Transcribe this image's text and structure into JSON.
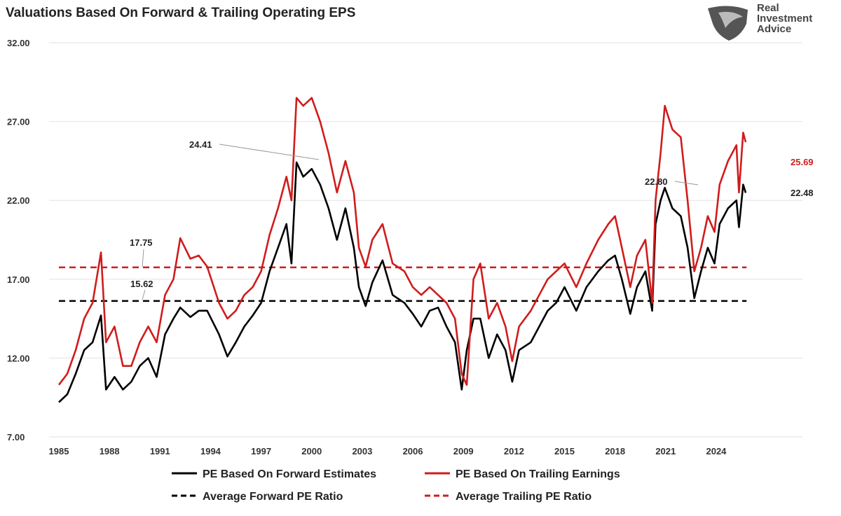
{
  "chart_data": {
    "type": "line",
    "title": "Valuations  Based On Forward & Trailing Operating EPS",
    "xlabel": "",
    "ylabel": "",
    "ylim": [
      7,
      32
    ],
    "xlim": [
      1985,
      2026
    ],
    "grid": true,
    "y_ticks": [
      "7.00",
      "12.00",
      "17.00",
      "22.00",
      "27.00",
      "32.00"
    ],
    "x_ticks": [
      "1985",
      "1988",
      "1991",
      "1994",
      "1997",
      "2000",
      "2003",
      "2006",
      "2009",
      "2012",
      "2015",
      "2018",
      "2021",
      "2024"
    ],
    "legend_position": "bottom",
    "x": [
      1985.0,
      1985.5,
      1986.0,
      1986.5,
      1987.0,
      1987.5,
      1987.8,
      1988.3,
      1988.8,
      1989.3,
      1989.8,
      1990.3,
      1990.8,
      1991.3,
      1991.8,
      1992.2,
      1992.8,
      1993.3,
      1993.8,
      1994.5,
      1995.0,
      1995.5,
      1996.0,
      1996.5,
      1997.0,
      1997.5,
      1998.0,
      1998.5,
      1998.8,
      1999.1,
      1999.5,
      2000.0,
      2000.5,
      2001.0,
      2001.5,
      2002.0,
      2002.5,
      2002.8,
      2003.2,
      2003.6,
      2004.2,
      2004.8,
      2005.5,
      2006.0,
      2006.5,
      2007.0,
      2007.5,
      2008.0,
      2008.5,
      2008.9,
      2009.2,
      2009.6,
      2010.0,
      2010.5,
      2011.0,
      2011.5,
      2011.9,
      2012.3,
      2013.0,
      2013.5,
      2014.0,
      2014.5,
      2015.0,
      2015.7,
      2016.3,
      2017.0,
      2017.6,
      2018.0,
      2018.4,
      2018.9,
      2019.3,
      2019.8,
      2020.2,
      2020.4,
      2020.7,
      2020.95,
      2021.4,
      2021.9,
      2022.3,
      2022.7,
      2023.1,
      2023.5,
      2023.9,
      2024.2,
      2024.7,
      2025.2,
      2025.35,
      2025.6,
      2025.75
    ],
    "series": [
      {
        "name": "PE Based On Forward Estimates",
        "color": "#000000",
        "style": "solid",
        "values": [
          9.2,
          9.7,
          11.0,
          12.5,
          13.0,
          14.7,
          10.0,
          10.8,
          10.0,
          10.5,
          11.5,
          12.0,
          10.8,
          13.5,
          14.5,
          15.2,
          14.6,
          15.0,
          15.0,
          13.5,
          12.1,
          13.0,
          14.0,
          14.7,
          15.5,
          17.5,
          19.0,
          20.5,
          18.0,
          24.41,
          23.5,
          24.0,
          23.0,
          21.5,
          19.5,
          21.5,
          19.0,
          16.5,
          15.3,
          16.8,
          18.2,
          16.0,
          15.5,
          14.8,
          14.0,
          15.0,
          15.2,
          14.0,
          13.0,
          10.0,
          12.5,
          14.5,
          14.5,
          12.0,
          13.5,
          12.5,
          10.5,
          12.5,
          13.0,
          14.0,
          15.0,
          15.5,
          16.5,
          15.0,
          16.5,
          17.5,
          18.2,
          18.5,
          17.0,
          14.8,
          16.5,
          17.5,
          15.0,
          20.5,
          22.0,
          22.8,
          21.5,
          21.0,
          19.0,
          15.8,
          17.5,
          19.0,
          18.0,
          20.5,
          21.5,
          22.0,
          20.3,
          23.0,
          22.48
        ]
      },
      {
        "name": "PE Based On Trailing Earnings",
        "color": "#d01c1c",
        "style": "solid",
        "values": [
          10.3,
          11.0,
          12.5,
          14.5,
          15.5,
          18.7,
          13.0,
          14.0,
          11.5,
          11.5,
          13.0,
          14.0,
          13.0,
          16.0,
          17.0,
          19.6,
          18.3,
          18.5,
          17.8,
          15.5,
          14.5,
          15.0,
          16.0,
          16.5,
          17.5,
          19.8,
          21.5,
          23.5,
          22.0,
          28.5,
          28.0,
          28.5,
          27.0,
          25.0,
          22.5,
          24.5,
          22.5,
          19.0,
          17.8,
          19.5,
          20.5,
          18.0,
          17.5,
          16.5,
          16.0,
          16.5,
          16.0,
          15.5,
          14.5,
          11.0,
          10.3,
          17.0,
          18.0,
          14.5,
          15.5,
          14.0,
          11.8,
          14.0,
          15.0,
          16.0,
          17.0,
          17.5,
          18.0,
          16.5,
          18.0,
          19.5,
          20.5,
          21.0,
          19.0,
          16.5,
          18.5,
          19.5,
          15.5,
          22.0,
          25.0,
          28.0,
          26.5,
          26.0,
          22.0,
          17.5,
          19.0,
          21.0,
          20.0,
          23.0,
          24.5,
          25.5,
          22.5,
          26.3,
          25.69
        ]
      },
      {
        "name": "Average Forward PE Ratio",
        "color": "#000000",
        "style": "dashed",
        "value": 15.62
      },
      {
        "name": "Average Trailing PE Ratio",
        "color": "#d01c1c",
        "style": "dashed",
        "value": 17.75
      }
    ],
    "annotations": [
      {
        "text": "24.41",
        "series": "forward",
        "x": 1999.1
      },
      {
        "text": "17.75",
        "series": "avg-trailing"
      },
      {
        "text": "15.62",
        "series": "avg-forward"
      },
      {
        "text": "22.80",
        "series": "forward",
        "x": 2020.95
      },
      {
        "text": "25.69",
        "series": "trailing-last",
        "color": "#d01c1c"
      },
      {
        "text": "22.48",
        "series": "forward-last"
      }
    ]
  },
  "logo": {
    "line1": "Real",
    "line2": "Investment",
    "line3": "Advice"
  }
}
